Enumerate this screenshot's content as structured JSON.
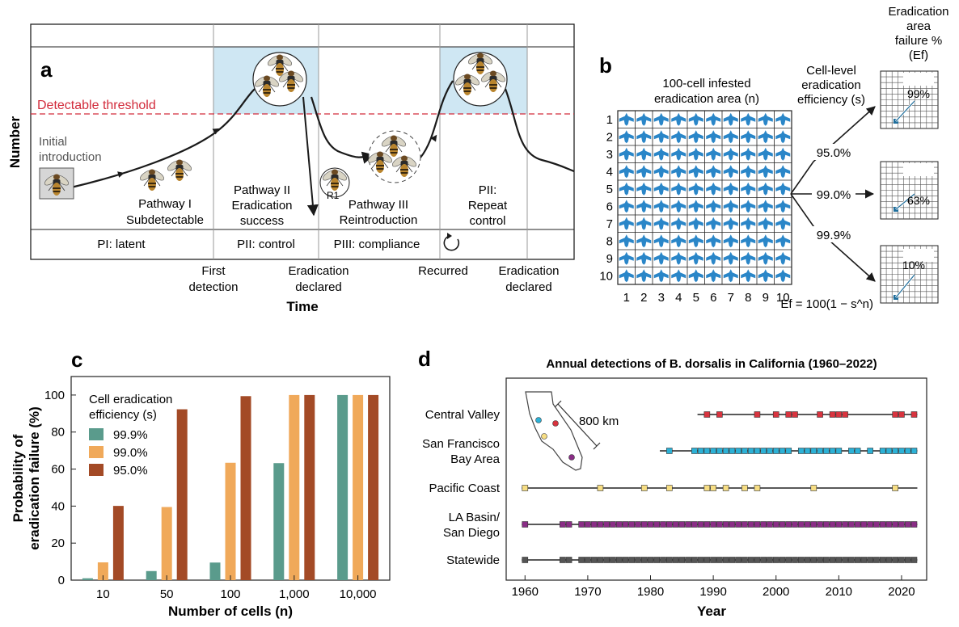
{
  "colors": {
    "threshold": "#d22b3b",
    "shade": "#cfe7f3",
    "fly_blue": "#2a86c8",
    "teal": "#5a9b8c",
    "orange": "#f0a95a",
    "brown": "#a34a26",
    "cv": "#d8343f",
    "sf": "#2cb1d6",
    "pc": "#f7de84",
    "la": "#8a2d86",
    "sw": "#555555"
  },
  "panel_a": {
    "letter": "a",
    "y_label": "Number",
    "x_label": "Time",
    "threshold_label": "Detectable threshold",
    "initial_label_1": "Initial",
    "initial_label_2": "introduction",
    "pathway1_1": "Pathway I",
    "pathway1_2": "Subdetectable",
    "pathway2_1": "Pathway II",
    "pathway2_2": "Eradication",
    "pathway2_3": "success",
    "pathway3_1": "Pathway III",
    "pathway3_2": "Reintroduction",
    "pii_repeat_1": "PII:",
    "pii_repeat_2": "Repeat",
    "pii_repeat_3": "control",
    "r1": "R1",
    "phase_pi": "PI: latent",
    "phase_pii": "PII: control",
    "phase_piii": "PIII: compliance",
    "event_first_1": "First",
    "event_first_2": "detection",
    "event_erad_1": "Eradication",
    "event_erad_2": "declared",
    "event_recurred": "Recurred",
    "event_erad2_1": "Eradication",
    "event_erad2_2": "declared"
  },
  "panel_b": {
    "letter": "b",
    "grid_title_1": "100-cell infested",
    "grid_title_2": "eradication area (n)",
    "eff_title_1": "Cell-level",
    "eff_title_2": "eradication",
    "eff_title_3": "efficiency (s)",
    "fail_title_1": "Eradication",
    "fail_title_2": "area",
    "fail_title_3": "failure %",
    "fail_title_4": "(Ef)",
    "row_labels": [
      "1",
      "2",
      "3",
      "4",
      "5",
      "6",
      "7",
      "8",
      "9",
      "10"
    ],
    "col_labels": [
      "1",
      "2",
      "3",
      "4",
      "5",
      "6",
      "7",
      "8",
      "9",
      "10"
    ],
    "efficiencies": [
      "95.0%",
      "99.0%",
      "99.9%"
    ],
    "failures": [
      "99%",
      "63%",
      "10%"
    ],
    "formula": "Ef = 100(1 − s^n)"
  },
  "panel_c": {
    "letter": "c",
    "ylabel_1": "Probability of",
    "ylabel_2": "eradication failure (%)",
    "xlabel": "Number of cells (n)",
    "legend_title_1": "Cell eradication",
    "legend_title_2": "efficiency (s)"
  },
  "panel_d": {
    "letter": "d",
    "title": "Annual detections of B. dorsalis in California (1960–2022)",
    "xlabel": "Year",
    "scale": "800 km"
  },
  "chart_data": [
    {
      "type": "bar",
      "title": "",
      "xlabel": "Number of cells (n)",
      "ylabel": "Probability of eradication failure (%)",
      "categories": [
        "10",
        "50",
        "100",
        "1,000",
        "10,000"
      ],
      "ylim": [
        0,
        110
      ],
      "yticks": [
        0,
        20,
        40,
        60,
        80,
        100
      ],
      "legend": "top-left",
      "series": [
        {
          "name": "99.9%",
          "color": "#5a9b8c",
          "values": [
            1,
            4.9,
            9.5,
            63.2,
            100
          ]
        },
        {
          "name": "99.0%",
          "color": "#f0a95a",
          "values": [
            9.6,
            39.5,
            63.4,
            100,
            100
          ]
        },
        {
          "name": "95.0%",
          "color": "#a34a26",
          "values": [
            40.1,
            92.3,
            99.4,
            100,
            100
          ]
        }
      ]
    },
    {
      "type": "scatter",
      "title": "Annual detections of B. dorsalis in California (1960–2022)",
      "xlabel": "Year",
      "xlim": [
        1957,
        2024
      ],
      "xticks": [
        1960,
        1970,
        1980,
        1990,
        2000,
        2010,
        2020
      ],
      "grid": false,
      "series": [
        {
          "name": "Central Valley",
          "color": "#d8343f",
          "line": [
            1988,
            2022
          ],
          "years": [
            1989,
            1991,
            1997,
            2000,
            2002,
            2003,
            2007,
            2009,
            2010,
            2011,
            2019,
            2020,
            2022
          ]
        },
        {
          "name": "San Francisco Bay Area",
          "color": "#2cb1d6",
          "line": [
            1982,
            2022
          ],
          "years": [
            1983,
            1987,
            1988,
            1989,
            1990,
            1991,
            1992,
            1993,
            1994,
            1995,
            1996,
            1997,
            1998,
            1999,
            2000,
            2001,
            2002,
            2004,
            2005,
            2006,
            2007,
            2008,
            2009,
            2010,
            2012,
            2013,
            2015,
            2017,
            2018,
            2019,
            2020,
            2021,
            2022
          ]
        },
        {
          "name": "Pacific Coast",
          "color": "#f7de84",
          "line": [
            1960,
            2022
          ],
          "years": [
            1960,
            1972,
            1979,
            1983,
            1989,
            1990,
            1992,
            1995,
            1997,
            2006,
            2019
          ]
        },
        {
          "name": "LA Basin/ San Diego",
          "color": "#8a2d86",
          "line": [
            1960,
            2022
          ],
          "years": [
            1960,
            1966,
            1967,
            1969,
            1970,
            1971,
            1972,
            1973,
            1974,
            1975,
            1976,
            1977,
            1978,
            1979,
            1980,
            1981,
            1982,
            1983,
            1984,
            1985,
            1986,
            1987,
            1988,
            1989,
            1990,
            1991,
            1992,
            1993,
            1994,
            1995,
            1996,
            1997,
            1998,
            1999,
            2000,
            2001,
            2002,
            2003,
            2004,
            2005,
            2006,
            2007,
            2008,
            2009,
            2010,
            2011,
            2012,
            2013,
            2014,
            2015,
            2016,
            2017,
            2018,
            2019,
            2020,
            2021,
            2022
          ]
        },
        {
          "name": "Statewide",
          "color": "#555555",
          "line": [
            1960,
            2022
          ],
          "years": [
            1960,
            1966,
            1967,
            1969,
            1970,
            1971,
            1972,
            1973,
            1974,
            1975,
            1976,
            1977,
            1978,
            1979,
            1980,
            1981,
            1982,
            1983,
            1984,
            1985,
            1986,
            1987,
            1988,
            1989,
            1990,
            1991,
            1992,
            1993,
            1994,
            1995,
            1996,
            1997,
            1998,
            1999,
            2000,
            2001,
            2002,
            2003,
            2004,
            2005,
            2006,
            2007,
            2008,
            2009,
            2010,
            2011,
            2012,
            2013,
            2014,
            2015,
            2016,
            2017,
            2018,
            2019,
            2020,
            2021,
            2022
          ]
        }
      ]
    }
  ]
}
